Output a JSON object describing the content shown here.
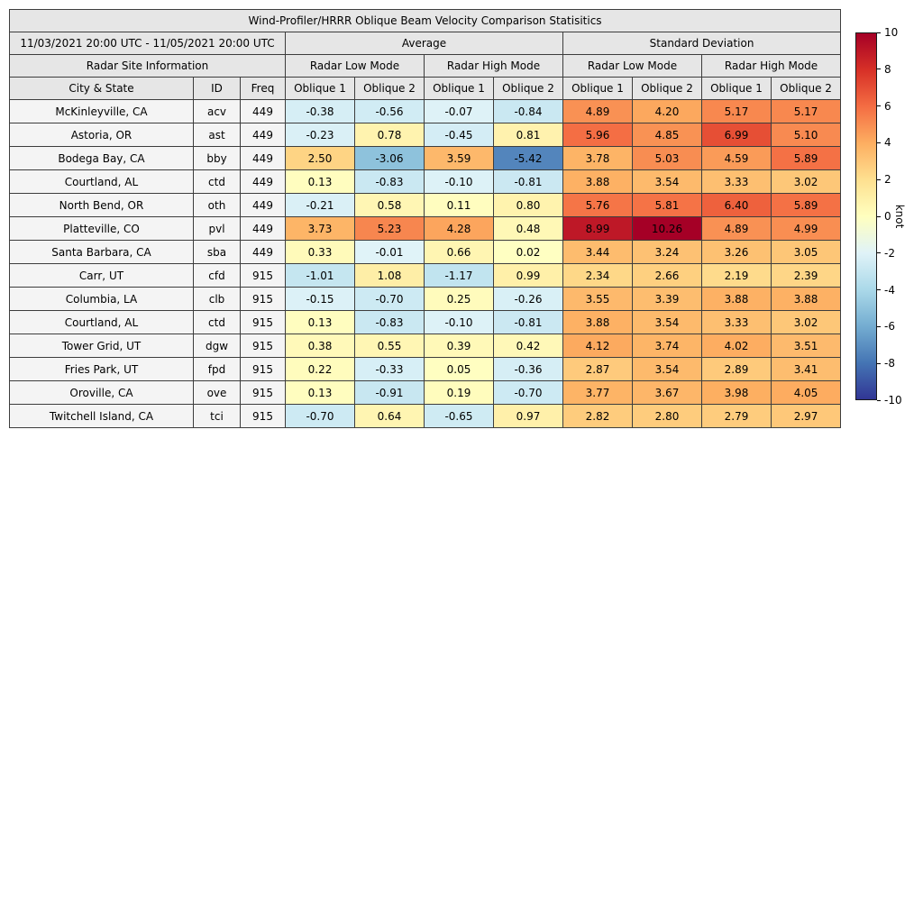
{
  "title": "Wind-Profiler/HRRR Oblique Beam Velocity Comparison Statisitics",
  "header": {
    "date_range": "11/03/2021 20:00 UTC - 11/05/2021 20:00 UTC",
    "average_label": "Average",
    "stddev_label": "Standard Deviation",
    "site_info_label": "Radar Site Information",
    "mode_labels": [
      "Radar Low Mode",
      "Radar High Mode",
      "Radar Low Mode",
      "Radar High Mode"
    ],
    "columns": [
      "City & State",
      "ID",
      "Freq",
      "Oblique 1",
      "Oblique 2",
      "Oblique 1",
      "Oblique 2",
      "Oblique 1",
      "Oblique 2",
      "Oblique 1",
      "Oblique 2"
    ]
  },
  "chart_data": {
    "type": "table",
    "title": "Wind-Profiler/HRRR Oblique Beam Velocity Comparison Statisitics",
    "value_unit": "knot",
    "value_column_order": [
      "avg_low_oblique1",
      "avg_low_oblique2",
      "avg_high_oblique1",
      "avg_high_oblique2",
      "std_low_oblique1",
      "std_low_oblique2",
      "std_high_oblique1",
      "std_high_oblique2"
    ],
    "colormap": {
      "vmin": -10,
      "vmax": 10,
      "negative": [
        "#e0f3f8",
        "#abd9e9",
        "#74add1",
        "#4575b4",
        "#313695",
        "#313695"
      ],
      "positive": [
        "#ffffc2",
        "#fee090",
        "#fdae61",
        "#f46d43",
        "#d73027",
        "#a50026"
      ]
    },
    "rows": [
      {
        "city": "McKinleyville, CA",
        "id": "acv",
        "freq": "449",
        "values": [
          -0.38,
          -0.56,
          -0.07,
          -0.84,
          4.89,
          4.2,
          5.17,
          5.17
        ]
      },
      {
        "city": "Astoria, OR",
        "id": "ast",
        "freq": "449",
        "values": [
          -0.23,
          0.78,
          -0.45,
          0.81,
          5.96,
          4.85,
          6.99,
          5.1
        ]
      },
      {
        "city": "Bodega Bay, CA",
        "id": "bby",
        "freq": "449",
        "values": [
          2.5,
          -3.06,
          3.59,
          -5.42,
          3.78,
          5.03,
          4.59,
          5.89
        ]
      },
      {
        "city": "Courtland, AL",
        "id": "ctd",
        "freq": "449",
        "values": [
          0.13,
          -0.83,
          -0.1,
          -0.81,
          3.88,
          3.54,
          3.33,
          3.02
        ]
      },
      {
        "city": "North Bend, OR",
        "id": "oth",
        "freq": "449",
        "values": [
          -0.21,
          0.58,
          0.11,
          0.8,
          5.76,
          5.81,
          6.4,
          5.89
        ]
      },
      {
        "city": "Platteville, CO",
        "id": "pvl",
        "freq": "449",
        "values": [
          3.73,
          5.23,
          4.28,
          0.48,
          8.99,
          10.26,
          4.89,
          4.99
        ]
      },
      {
        "city": "Santa Barbara, CA",
        "id": "sba",
        "freq": "449",
        "values": [
          0.33,
          -0.01,
          0.66,
          0.02,
          3.44,
          3.24,
          3.26,
          3.05
        ]
      },
      {
        "city": "Carr, UT",
        "id": "cfd",
        "freq": "915",
        "values": [
          -1.01,
          1.08,
          -1.17,
          0.99,
          2.34,
          2.66,
          2.19,
          2.39
        ]
      },
      {
        "city": "Columbia, LA",
        "id": "clb",
        "freq": "915",
        "values": [
          -0.15,
          -0.7,
          0.25,
          -0.26,
          3.55,
          3.39,
          3.88,
          3.88
        ]
      },
      {
        "city": "Courtland, AL",
        "id": "ctd",
        "freq": "915",
        "values": [
          0.13,
          -0.83,
          -0.1,
          -0.81,
          3.88,
          3.54,
          3.33,
          3.02
        ]
      },
      {
        "city": "Tower Grid, UT",
        "id": "dgw",
        "freq": "915",
        "values": [
          0.38,
          0.55,
          0.39,
          0.42,
          4.12,
          3.74,
          4.02,
          3.51
        ]
      },
      {
        "city": "Fries Park, UT",
        "id": "fpd",
        "freq": "915",
        "values": [
          0.22,
          -0.33,
          0.05,
          -0.36,
          2.87,
          3.54,
          2.89,
          3.41
        ]
      },
      {
        "city": "Oroville, CA",
        "id": "ove",
        "freq": "915",
        "values": [
          0.13,
          -0.91,
          0.19,
          -0.7,
          3.77,
          3.67,
          3.98,
          4.05
        ]
      },
      {
        "city": "Twitchell Island, CA",
        "id": "tci",
        "freq": "915",
        "values": [
          -0.7,
          0.64,
          -0.65,
          0.97,
          2.82,
          2.8,
          2.79,
          2.97
        ]
      }
    ]
  },
  "colorbar": {
    "label": "knot",
    "ticks": [
      "10",
      "8",
      "6",
      "4",
      "2",
      "0",
      "-2",
      "-4",
      "-6",
      "-8",
      "-10"
    ],
    "gradient": [
      "#a50026",
      "#d73027",
      "#f46d43",
      "#fdae61",
      "#fee090",
      "#ffffbf",
      "#e0f3f8",
      "#abd9e9",
      "#74add1",
      "#4575b4",
      "#313695"
    ]
  }
}
